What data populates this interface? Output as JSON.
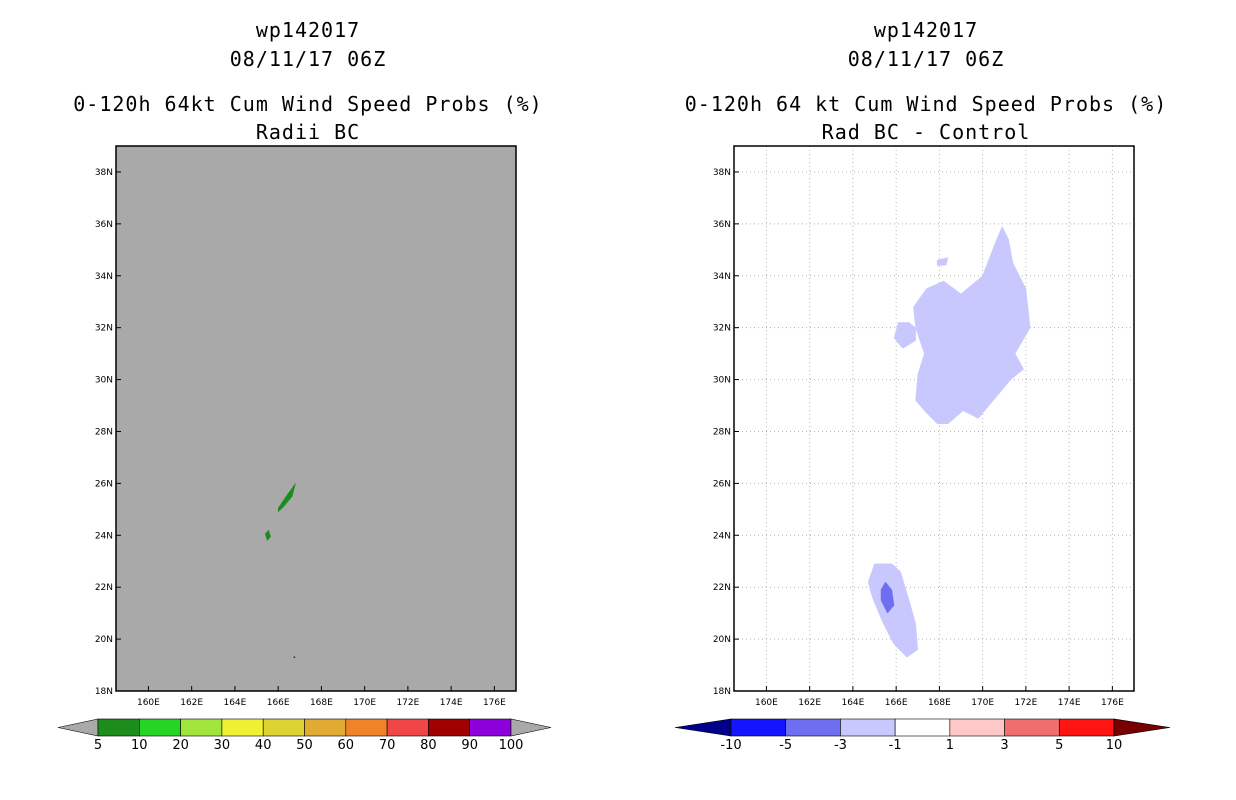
{
  "chart_data": [
    {
      "type": "heatmap",
      "storm_id": "wp142017",
      "date": "08/11/17 06Z",
      "title": "0-120h 64kt Cum Wind Speed Probs (%)",
      "subtitle": "Radii BC",
      "xlim": [
        158.5,
        177
      ],
      "ylim": [
        18,
        39
      ],
      "xticks": [
        "160E",
        "162E",
        "164E",
        "166E",
        "168E",
        "170E",
        "172E",
        "174E",
        "176E"
      ],
      "yticks": [
        "18N",
        "20N",
        "22N",
        "24N",
        "26N",
        "28N",
        "30N",
        "32N",
        "34N",
        "36N",
        "38N"
      ],
      "background_color": "#a9a9a9",
      "grid": false,
      "regions": [
        {
          "level": "5-10",
          "color": "#1c8c1c",
          "lonlat": [
            [
              166.0,
              25.05
            ],
            [
              166.45,
              25.6
            ],
            [
              166.8,
              26.0
            ],
            [
              166.65,
              25.5
            ],
            [
              166.25,
              25.1
            ],
            [
              166.0,
              24.9
            ]
          ]
        },
        {
          "level": "5-10",
          "color": "#1c8c1c",
          "lonlat": [
            [
              165.4,
              24.05
            ],
            [
              165.55,
              24.2
            ],
            [
              165.65,
              23.95
            ],
            [
              165.5,
              23.8
            ]
          ]
        }
      ],
      "colorbar": {
        "labels": [
          "5",
          "10",
          "20",
          "30",
          "40",
          "50",
          "60",
          "70",
          "80",
          "90",
          "100"
        ],
        "colors": [
          "#1c8c1c",
          "#26d426",
          "#a0e43c",
          "#f0f032",
          "#dcd232",
          "#e1aa32",
          "#f08228",
          "#f04646",
          "#a00000",
          "#8c00dc"
        ],
        "under_color": "#a9a9a9",
        "over_color": "#a9a9a9"
      }
    },
    {
      "type": "heatmap",
      "storm_id": "wp142017",
      "date": "08/11/17 06Z",
      "title": "0-120h 64 kt Cum Wind Speed Probs (%)",
      "subtitle": "Rad BC - Control",
      "xlim": [
        158.5,
        177
      ],
      "ylim": [
        18,
        39
      ],
      "xticks": [
        "160E",
        "162E",
        "164E",
        "166E",
        "168E",
        "170E",
        "172E",
        "174E",
        "176E"
      ],
      "yticks": [
        "18N",
        "20N",
        "22N",
        "24N",
        "26N",
        "28N",
        "30N",
        "32N",
        "34N",
        "36N",
        "38N"
      ],
      "background_color": "#ffffff",
      "grid": true,
      "regions": [
        {
          "level": "-3 to -1",
          "color": "#c8c8ff",
          "lonlat": [
            [
              169.0,
              33.3
            ],
            [
              170.0,
              34.0
            ],
            [
              170.6,
              35.3
            ],
            [
              170.9,
              35.9
            ],
            [
              171.2,
              35.4
            ],
            [
              171.4,
              34.5
            ],
            [
              172.0,
              33.5
            ],
            [
              172.2,
              32.0
            ],
            [
              171.5,
              31.0
            ],
            [
              171.9,
              30.4
            ],
            [
              171.3,
              30.0
            ],
            [
              170.5,
              29.2
            ],
            [
              169.8,
              28.5
            ],
            [
              169.1,
              28.8
            ],
            [
              168.4,
              28.3
            ],
            [
              167.9,
              28.3
            ],
            [
              167.3,
              28.8
            ],
            [
              166.9,
              29.2
            ],
            [
              167.0,
              30.2
            ],
            [
              167.3,
              31.0
            ],
            [
              166.9,
              32.0
            ],
            [
              166.8,
              32.8
            ],
            [
              167.4,
              33.5
            ],
            [
              168.2,
              33.8
            ]
          ]
        },
        {
          "level": "-3 to -1",
          "color": "#c8c8ff",
          "lonlat": [
            [
              166.6,
              32.2
            ],
            [
              166.1,
              32.2
            ],
            [
              165.9,
              31.6
            ],
            [
              166.3,
              31.2
            ],
            [
              166.9,
              31.5
            ],
            [
              166.9,
              32.0
            ]
          ]
        },
        {
          "level": "-3 to -1",
          "color": "#c8c8ff",
          "lonlat": [
            [
              167.9,
              34.6
            ],
            [
              168.4,
              34.7
            ],
            [
              168.3,
              34.4
            ],
            [
              167.9,
              34.4
            ]
          ]
        },
        {
          "level": "-3 to -1",
          "color": "#c8c8ff",
          "lonlat": [
            [
              165.0,
              22.9
            ],
            [
              165.8,
              22.9
            ],
            [
              166.2,
              22.6
            ],
            [
              166.6,
              21.5
            ],
            [
              166.9,
              20.6
            ],
            [
              167.0,
              19.6
            ],
            [
              166.5,
              19.3
            ],
            [
              165.9,
              19.8
            ],
            [
              165.4,
              20.6
            ],
            [
              164.9,
              21.6
            ],
            [
              164.7,
              22.2
            ]
          ]
        },
        {
          "level": "-5 to -3",
          "color": "#6e6ef0",
          "lonlat": [
            [
              165.5,
              22.2
            ],
            [
              165.8,
              21.9
            ],
            [
              165.9,
              21.3
            ],
            [
              165.6,
              21.0
            ],
            [
              165.3,
              21.5
            ],
            [
              165.3,
              21.9
            ]
          ]
        }
      ],
      "colorbar": {
        "labels": [
          "-10",
          "-5",
          "-3",
          "-1",
          "1",
          "3",
          "5",
          "10"
        ],
        "colors": [
          "#1414ff",
          "#6e6ef0",
          "#c8c8ff",
          "#ffffff",
          "#ffc8c8",
          "#f06e6e",
          "#ff1414"
        ],
        "under_color": "#00008c",
        "over_color": "#780000"
      }
    }
  ]
}
